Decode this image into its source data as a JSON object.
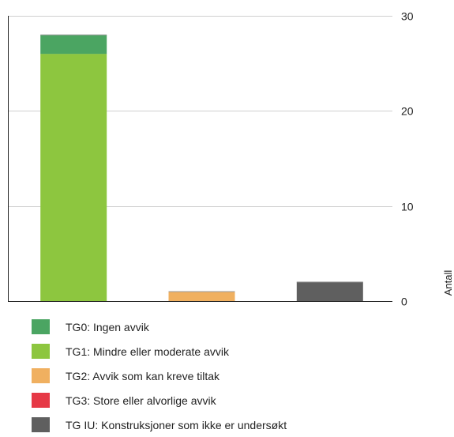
{
  "chart_data": {
    "type": "bar",
    "stacked": true,
    "categories": [
      "",
      "",
      ""
    ],
    "series": [
      {
        "name": "TG0: Ingen avvik",
        "color": "#4ba562",
        "values": [
          2,
          0,
          0
        ]
      },
      {
        "name": "TG1: Mindre eller moderate avvik",
        "color": "#8dc63f",
        "values": [
          26,
          0,
          0
        ]
      },
      {
        "name": "TG2: Avvik som kan kreve tiltak",
        "color": "#f0b060",
        "values": [
          0,
          1,
          0
        ]
      },
      {
        "name": "TG3: Store eller alvorlige avvik",
        "color": "#e63946",
        "values": [
          0,
          0,
          0
        ]
      },
      {
        "name": "TG IU: Konstruksjoner som ikke er undersøkt",
        "color": "#5f5f5f",
        "values": [
          0,
          0,
          2
        ]
      }
    ],
    "ylabel": "Antall",
    "ylim": [
      0,
      30
    ],
    "yticks": [
      0,
      10,
      20,
      30
    ],
    "y_axis_side": "right",
    "grid": true,
    "legend": "bottom"
  }
}
